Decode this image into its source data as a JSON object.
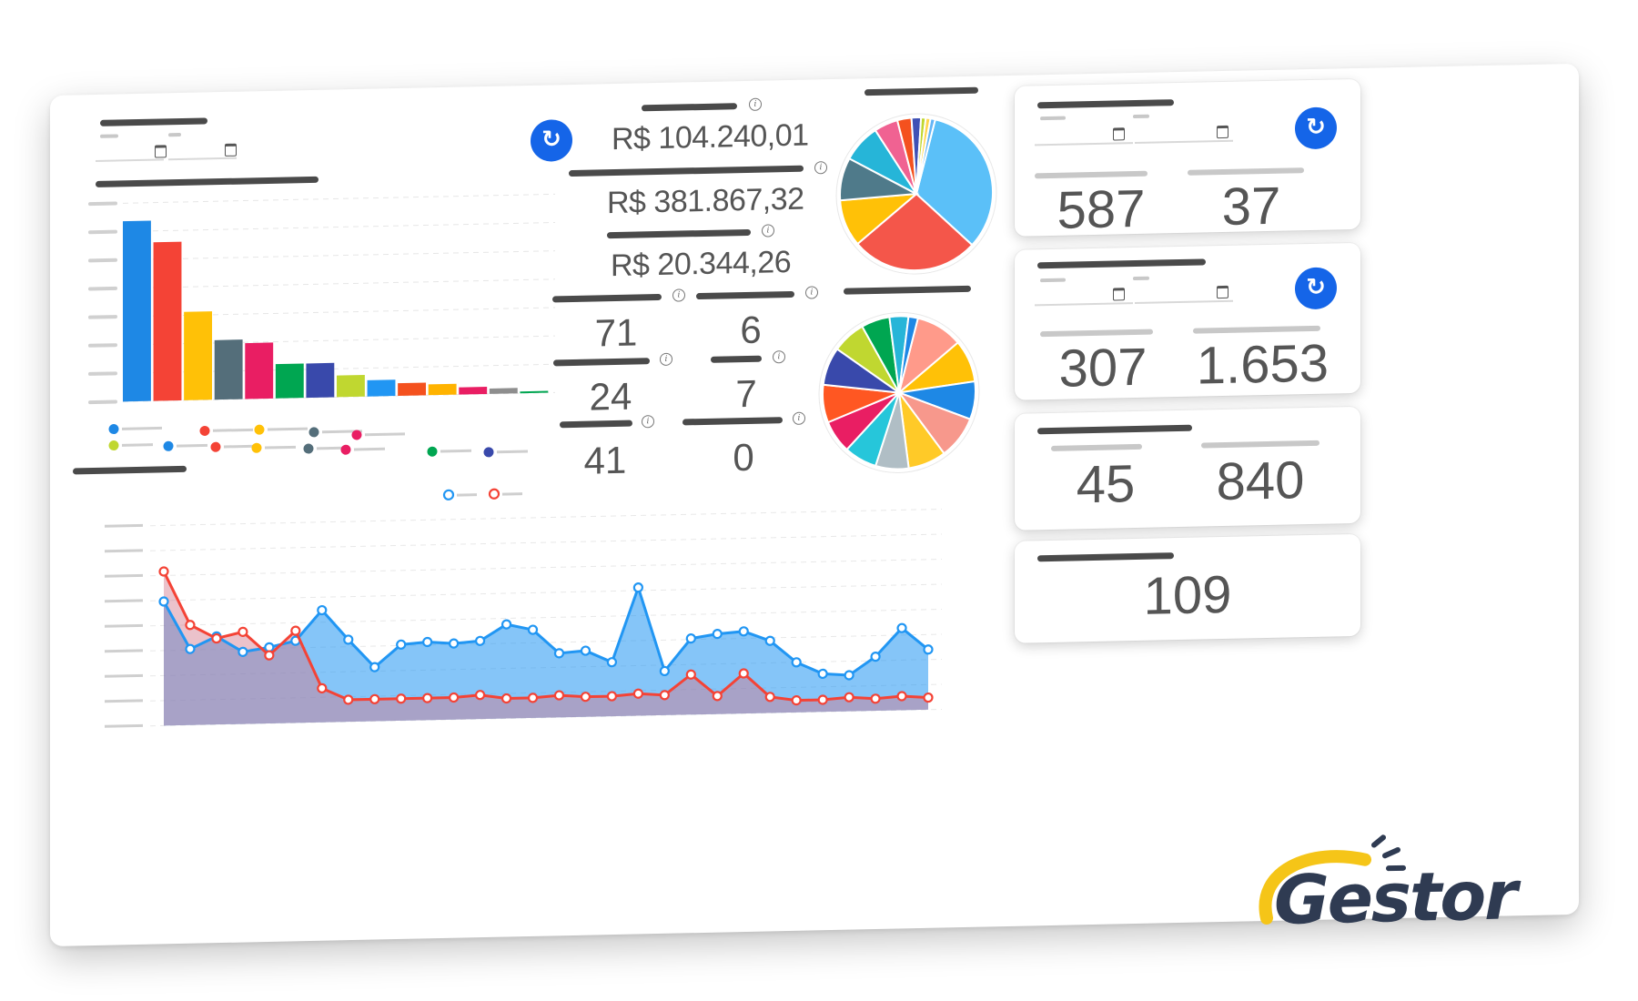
{
  "values": {
    "money1": "R$ 104.240,01",
    "money2": "R$ 381.867,32",
    "money3": "R$ 20.344,26",
    "count_a1": "71",
    "count_b1": "6",
    "count_a2": "24",
    "count_b2": "7",
    "count_a3": "41",
    "count_b3": "0"
  },
  "cards": {
    "card1": {
      "left": "587",
      "right": "37"
    },
    "card2": {
      "left": "307",
      "right": "1.653"
    },
    "card3": {
      "left": "45",
      "right": "840"
    },
    "card4": {
      "value": "109"
    }
  },
  "logo": {
    "text": "Gestor"
  },
  "icons": {
    "refresh": "refresh-icon",
    "calendar": "calendar-icon",
    "info": "info-icon"
  },
  "colors": {
    "accent": "#1565e8",
    "series_blue": "#2196f3",
    "series_red": "#f44336"
  },
  "chart_data": [
    {
      "type": "bar",
      "categories": [
        "",
        "",
        "",
        "",
        "",
        "",
        "",
        "",
        "",
        "",
        "",
        "",
        "",
        ""
      ],
      "values": [
        100,
        88,
        49,
        33,
        31,
        19,
        19,
        12,
        9,
        7,
        6,
        4,
        3,
        1
      ],
      "colors": [
        "#1e88e5",
        "#f44336",
        "#ffc107",
        "#546e7a",
        "#e91e63",
        "#00a651",
        "#3949ab",
        "#c0d730",
        "#2196f3",
        "#f4511e",
        "#ffb300",
        "#e91e63",
        "#8e8e8e",
        "#00a651"
      ],
      "ylim": [
        0,
        110
      ],
      "grid": true,
      "legend": "bottom"
    },
    {
      "type": "pie",
      "values": [
        33,
        27,
        10,
        9,
        8,
        5,
        3,
        2,
        1,
        1,
        1
      ],
      "colors": [
        "#5bc0f8",
        "#f4564a",
        "#ffc107",
        "#4f7a8a",
        "#26b5d8",
        "#f06292",
        "#f4511e",
        "#3f51b5",
        "#c0d730",
        "#ffd54f",
        "#64b5f6"
      ]
    },
    {
      "type": "pie",
      "values": [
        10,
        9,
        8,
        9,
        8,
        7,
        7,
        7,
        8,
        8,
        7,
        6,
        4,
        2
      ],
      "colors": [
        "#ff9a8a",
        "#ffc107",
        "#1e88e5",
        "#f7988c",
        "#ffca28",
        "#b0bec5",
        "#26c6da",
        "#e91e63",
        "#ff5722",
        "#3949ab",
        "#c0d730",
        "#00a651",
        "#26b5d8",
        "#1e88e5"
      ]
    },
    {
      "type": "area",
      "x": [
        1,
        2,
        3,
        4,
        5,
        6,
        7,
        8,
        9,
        10,
        11,
        12,
        13,
        14,
        15,
        16,
        17,
        18,
        19,
        20,
        21,
        22,
        23,
        24,
        25,
        26,
        27,
        28,
        29,
        30
      ],
      "series": [
        {
          "values": [
            62,
            38,
            44,
            36,
            38,
            41,
            56,
            41,
            27,
            38,
            39,
            38,
            39,
            47,
            44,
            32,
            33,
            27,
            64,
            22,
            38,
            40,
            41,
            36,
            25,
            19,
            18,
            27,
            41,
            30
          ]
        },
        {
          "values": [
            77,
            50,
            43,
            46,
            34,
            46,
            17,
            11,
            11,
            11,
            11,
            11,
            12,
            10,
            10,
            11,
            10,
            10,
            11,
            10,
            20,
            9,
            20,
            8,
            6,
            6,
            7,
            6,
            7,
            6
          ]
        }
      ],
      "ylim": [
        0,
        100
      ],
      "grid": true,
      "legend": "top"
    }
  ]
}
